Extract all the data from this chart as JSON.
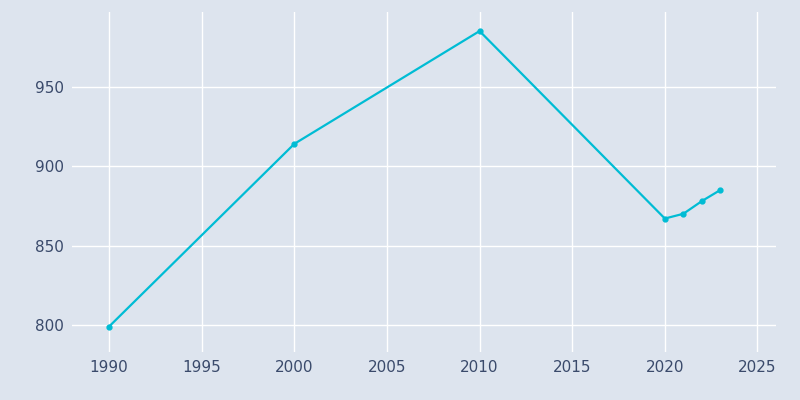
{
  "years": [
    1990,
    2000,
    2010,
    2020,
    2021,
    2022,
    2023
  ],
  "population": [
    799,
    914,
    985,
    867,
    870,
    878,
    885
  ],
  "line_color": "#00BCD4",
  "background_color": "#DDE4EE",
  "grid_color": "#FFFFFF",
  "text_color": "#3A4A6B",
  "xlim": [
    1988,
    2026
  ],
  "ylim": [
    783,
    997
  ],
  "xticks": [
    1990,
    1995,
    2000,
    2005,
    2010,
    2015,
    2020,
    2025
  ],
  "yticks": [
    800,
    850,
    900,
    950
  ],
  "linewidth": 1.6,
  "markersize": 3.5,
  "figsize": [
    8.0,
    4.0
  ],
  "dpi": 100
}
